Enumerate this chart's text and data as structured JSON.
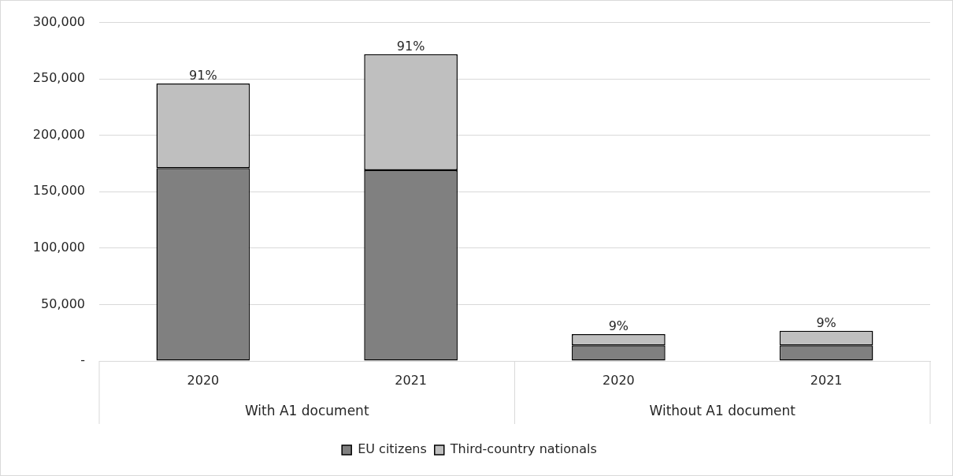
{
  "chart_data": {
    "type": "bar",
    "stacked": true,
    "categories": [
      "2020",
      "2021",
      "2020",
      "2021"
    ],
    "series": [
      {
        "name": "EU citizens",
        "color": "#808080",
        "values": [
          171000,
          169000,
          13800,
          13800
        ]
      },
      {
        "name": "Third-country nationals",
        "color": "#bfbfbf",
        "values": [
          75000,
          103000,
          10000,
          12900
        ]
      }
    ],
    "annotations": [
      "91%",
      "91%",
      "9%",
      "9%",
      "With A1 document",
      "Without A1 document"
    ],
    "ylim": [
      0,
      300000
    ],
    "yticks": [
      {
        "value": 0,
        "label": "-"
      },
      {
        "value": 50000,
        "label": "50,000"
      },
      {
        "value": 100000,
        "label": "100,000"
      },
      {
        "value": 150000,
        "label": "150,000"
      },
      {
        "value": 200000,
        "label": "200,000"
      },
      {
        "value": 250000,
        "label": "250,000"
      },
      {
        "value": 300000,
        "label": "300,000"
      }
    ],
    "grid": "y",
    "legend": "bottom"
  }
}
